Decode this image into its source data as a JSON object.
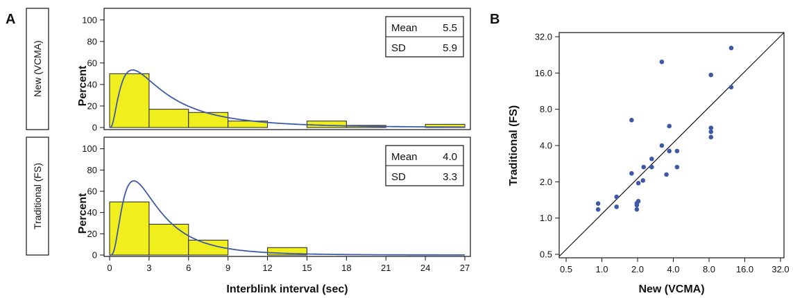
{
  "figure": {
    "panel_a_label": "A",
    "panel_b_label": "B"
  },
  "chart_data": [
    {
      "type": "bar",
      "panel": "A",
      "row_label": "New (VCMA)",
      "ylabel": "Percent",
      "xlabel": "Interblink interval (sec)",
      "ylim": [
        0,
        105
      ],
      "yticks": [
        0,
        20,
        40,
        60,
        80,
        100
      ],
      "xlim": [
        0,
        27
      ],
      "xticks": [
        0,
        3,
        6,
        9,
        12,
        15,
        18,
        21,
        24,
        27
      ],
      "bin_width": 3,
      "bins": [
        {
          "start": 0,
          "value": 50
        },
        {
          "start": 3,
          "value": 17
        },
        {
          "start": 6,
          "value": 14
        },
        {
          "start": 9,
          "value": 6
        },
        {
          "start": 12,
          "value": 0
        },
        {
          "start": 15,
          "value": 6
        },
        {
          "start": 18,
          "value": 2
        },
        {
          "start": 21,
          "value": 0
        },
        {
          "start": 24,
          "value": 3
        }
      ],
      "stats": {
        "mean_label": "Mean",
        "mean": "5.5",
        "sd_label": "SD",
        "sd": "5.9"
      },
      "fit_curve": {
        "type": "lognormal",
        "mean": 5.5,
        "sd": 5.9
      },
      "colors": {
        "bar_fill": "#f0ee1c",
        "bar_stroke": "#222222",
        "curve": "#3d59a8"
      }
    },
    {
      "type": "bar",
      "panel": "A",
      "row_label": "Traditional (FS)",
      "ylabel": "Percent",
      "xlabel": "Interblink interval (sec)",
      "ylim": [
        0,
        105
      ],
      "yticks": [
        0,
        20,
        40,
        60,
        80,
        100
      ],
      "xlim": [
        0,
        27
      ],
      "xticks": [
        0,
        3,
        6,
        9,
        12,
        15,
        18,
        21,
        24,
        27
      ],
      "bin_width": 3,
      "bins": [
        {
          "start": 0,
          "value": 50
        },
        {
          "start": 3,
          "value": 29
        },
        {
          "start": 6,
          "value": 14
        },
        {
          "start": 9,
          "value": 0
        },
        {
          "start": 12,
          "value": 7
        }
      ],
      "stats": {
        "mean_label": "Mean",
        "mean": "4.0",
        "sd_label": "SD",
        "sd": "3.3"
      },
      "fit_curve": {
        "type": "lognormal",
        "mean": 4.0,
        "sd": 3.3
      },
      "colors": {
        "bar_fill": "#f0ee1c",
        "bar_stroke": "#222222",
        "curve": "#3d59a8"
      }
    },
    {
      "type": "scatter",
      "panel": "B",
      "xlabel": "New (VCMA)",
      "ylabel": "Traditional (FS)",
      "xscale": "log2",
      "yscale": "log2",
      "xlim": [
        0.5,
        32
      ],
      "ylim": [
        0.5,
        32
      ],
      "xticks": [
        0.5,
        1.0,
        2.0,
        4.0,
        8.0,
        16.0,
        32.0
      ],
      "xtick_labels": [
        "0.5",
        "1.0",
        "2.0",
        "4.0",
        "8.0",
        "16.0",
        "32.0"
      ],
      "yticks": [
        0.5,
        1.0,
        2.0,
        4.0,
        8.0,
        16.0,
        32.0
      ],
      "ytick_labels": [
        "0.5",
        "1.0",
        "2.0",
        "4.0",
        "8.0",
        "16.0",
        "32.0"
      ],
      "identity_line": true,
      "points": [
        {
          "x": 0.93,
          "y": 1.32
        },
        {
          "x": 0.93,
          "y": 1.18
        },
        {
          "x": 1.33,
          "y": 1.5
        },
        {
          "x": 1.33,
          "y": 1.24
        },
        {
          "x": 1.78,
          "y": 6.5
        },
        {
          "x": 1.78,
          "y": 2.35
        },
        {
          "x": 1.97,
          "y": 1.33
        },
        {
          "x": 1.97,
          "y": 1.28
        },
        {
          "x": 1.97,
          "y": 1.18
        },
        {
          "x": 2.03,
          "y": 1.38
        },
        {
          "x": 2.03,
          "y": 1.95
        },
        {
          "x": 2.22,
          "y": 2.05
        },
        {
          "x": 2.25,
          "y": 2.65
        },
        {
          "x": 2.63,
          "y": 3.1
        },
        {
          "x": 2.63,
          "y": 2.65
        },
        {
          "x": 3.2,
          "y": 19.8
        },
        {
          "x": 3.2,
          "y": 4.0
        },
        {
          "x": 3.5,
          "y": 2.3
        },
        {
          "x": 3.7,
          "y": 5.8
        },
        {
          "x": 3.7,
          "y": 3.6
        },
        {
          "x": 4.3,
          "y": 3.6
        },
        {
          "x": 4.3,
          "y": 2.65
        },
        {
          "x": 8.3,
          "y": 15.4
        },
        {
          "x": 8.3,
          "y": 5.6
        },
        {
          "x": 8.3,
          "y": 5.2
        },
        {
          "x": 8.3,
          "y": 4.7
        },
        {
          "x": 12.3,
          "y": 25.8
        },
        {
          "x": 12.3,
          "y": 12.2
        }
      ],
      "colors": {
        "point": "#3d59a8",
        "line": "#111111"
      }
    }
  ]
}
